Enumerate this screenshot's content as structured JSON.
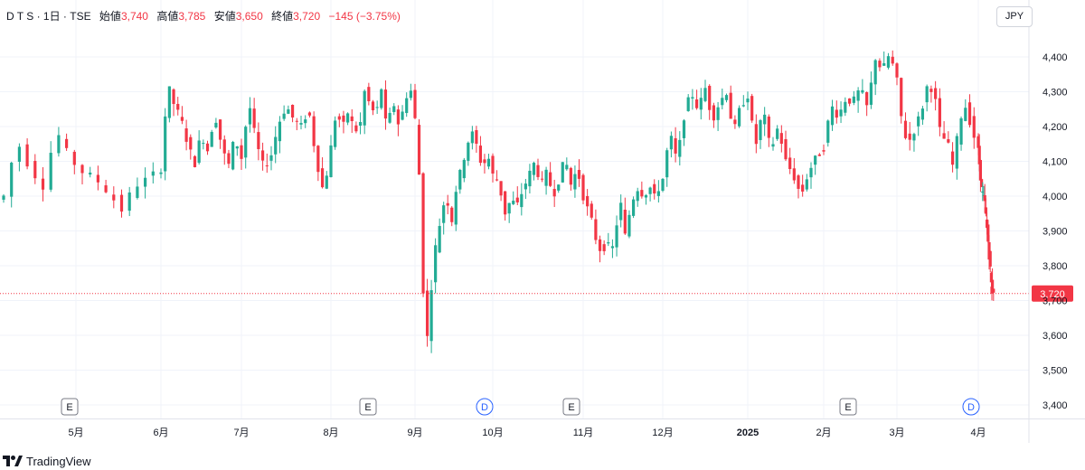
{
  "header": {
    "symbol": "D T S · 1日 · TSE",
    "open_label": "始値",
    "open": "3,740",
    "high_label": "高値",
    "high": "3,785",
    "low_label": "安値",
    "low": "3,650",
    "close_label": "終値",
    "close": "3,720",
    "change": "−145 (−3.75%)"
  },
  "currency": "JPY",
  "brand": "TradingView",
  "colors": {
    "up": "#22ab94",
    "down": "#f23645",
    "grid": "#f0f3fa",
    "text": "#131722",
    "marker_blue": "#2962ff"
  },
  "chart_data": {
    "type": "candlestick",
    "y_ticks": [
      "4,400",
      "4,300",
      "4,200",
      "4,100",
      "4,000",
      "3,900",
      "3,800",
      "3,700",
      "3,600",
      "3,500",
      "3,400"
    ],
    "ylim": [
      3400,
      4440
    ],
    "x_ticks": [
      "5月",
      "6月",
      "7月",
      "8月",
      "9月",
      "10月",
      "11月",
      "12月",
      "2025",
      "2月",
      "3月",
      "4月"
    ],
    "last_price": "3,720",
    "last_value": 3720,
    "events": [
      {
        "label": "E",
        "type": "earnings",
        "month": "5月"
      },
      {
        "label": "E",
        "type": "earnings",
        "month": "8月"
      },
      {
        "label": "D",
        "type": "dividend",
        "month": "10月"
      },
      {
        "label": "E",
        "type": "earnings",
        "month": "11月"
      },
      {
        "label": "E",
        "type": "earnings",
        "month": "2月"
      },
      {
        "label": "D",
        "type": "dividend",
        "month": "4月"
      }
    ],
    "segments": [
      [
        4000,
        4160,
        4080,
        4030,
        4190,
        4110,
        4070,
        4050,
        4010,
        3960,
        4030,
        4050,
        4080
      ],
      [
        4080,
        4320,
        4260,
        4220,
        4150,
        4090,
        4180,
        4130,
        4240,
        4150,
        4080,
        4170,
        4110
      ],
      [
        4110,
        4270,
        4150,
        4080,
        4120,
        4210,
        4260,
        4220,
        4200,
        4250,
        4110,
        4010,
        4140
      ],
      [
        4140,
        4250,
        4190,
        4240,
        4200,
        4180,
        4300,
        4260,
        4230,
        4310,
        4180,
        4280,
        4210,
        4250,
        4330,
        4220
      ],
      [
        4220,
        4020,
        3520,
        3720,
        3860,
        3940,
        4010,
        3920,
        4030,
        4080,
        4150,
        4180,
        4140,
        4080,
        4120,
        4060
      ],
      [
        4060,
        4040,
        3950,
        3990,
        3970,
        4020,
        4060,
        4100,
        4030,
        4070,
        4000,
        4050,
        4110,
        4030,
        4080,
        4000
      ],
      [
        4000,
        3960,
        3920,
        3860,
        3840,
        3870,
        3830,
        3910,
        3980,
        3880,
        3960,
        4010,
        4030,
        3990,
        4040,
        3990,
        4020,
        4050
      ],
      [
        4050,
        4180,
        4100,
        4230,
        4300,
        4250,
        4310,
        4220,
        4270,
        4300,
        4180,
        4260,
        4290
      ],
      [
        4290,
        4140,
        4250,
        4130,
        4200,
        4100,
        4060,
        4000,
        4070,
        4110,
        4140
      ],
      [
        4140,
        4260,
        4230,
        4280,
        4270,
        4310,
        4250,
        4400,
        4360,
        4410,
        4330
      ],
      [
        4330,
        4180,
        4160,
        4200,
        4250,
        4330,
        4290,
        4170,
        4160,
        4080,
        4220,
        4260,
        4190,
        4130
      ],
      [
        4130,
        4020,
        3980,
        3870,
        3750,
        3720
      ]
    ]
  }
}
